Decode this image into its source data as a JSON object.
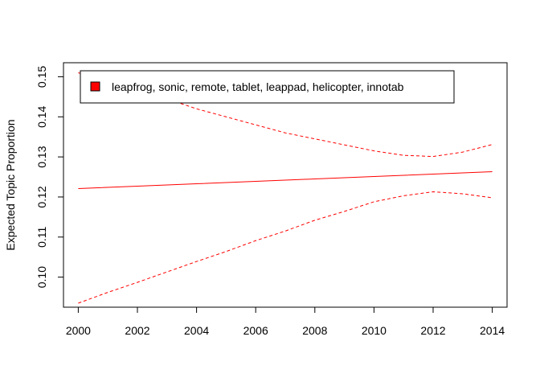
{
  "chart_data": {
    "type": "line",
    "title": "",
    "xlabel": "",
    "ylabel": "Expected Topic Proportion",
    "xlim": [
      1999.5,
      2014.5
    ],
    "ylim": [
      0.0925,
      0.1535
    ],
    "x_ticks": [
      2000,
      2002,
      2004,
      2006,
      2008,
      2010,
      2012,
      2014
    ],
    "y_ticks": [
      0.1,
      0.11,
      0.12,
      0.13,
      0.14,
      0.15
    ],
    "y_tick_labels": [
      "0.10",
      "0.11",
      "0.12",
      "0.13",
      "0.14",
      "0.15"
    ],
    "grid": false,
    "legend_position": "top-left",
    "legend": [
      "leapfrog, sonic, remote, tablet, leappad, helicopter, innotab"
    ],
    "series": [
      {
        "name": "leapfrog, sonic, remote, tablet, leappad, helicopter, innotab",
        "role": "estimate",
        "color": "#ff0000",
        "dash": "solid",
        "x": [
          2000,
          2002,
          2004,
          2006,
          2008,
          2010,
          2012,
          2014
        ],
        "values": [
          0.1221,
          0.1227,
          0.1233,
          0.1239,
          0.1245,
          0.1251,
          0.1257,
          0.1263
        ]
      },
      {
        "name": "",
        "role": "upper-bound",
        "color": "#ff0000",
        "dash": "dashed",
        "x": [
          2000,
          2001,
          2002,
          2003,
          2004,
          2005,
          2006,
          2007,
          2008,
          2009,
          2010,
          2011,
          2012,
          2013,
          2014
        ],
        "values": [
          0.151,
          0.149,
          0.147,
          0.1445,
          0.142,
          0.14,
          0.138,
          0.136,
          0.1345,
          0.133,
          0.1315,
          0.1304,
          0.1301,
          0.1312,
          0.1331
        ]
      },
      {
        "name": "",
        "role": "lower-bound",
        "color": "#ff0000",
        "dash": "dashed",
        "x": [
          2000,
          2001,
          2002,
          2003,
          2004,
          2005,
          2006,
          2007,
          2008,
          2009,
          2010,
          2011,
          2012,
          2013,
          2014
        ],
        "values": [
          0.0935,
          0.0962,
          0.0987,
          0.1013,
          0.1039,
          0.1064,
          0.1091,
          0.1115,
          0.1142,
          0.1164,
          0.1188,
          0.1203,
          0.1213,
          0.1208,
          0.1198
        ]
      }
    ],
    "colors": {
      "series": "#ff0000",
      "axis": "#000000",
      "legend_swatch": "#ff0000"
    }
  }
}
